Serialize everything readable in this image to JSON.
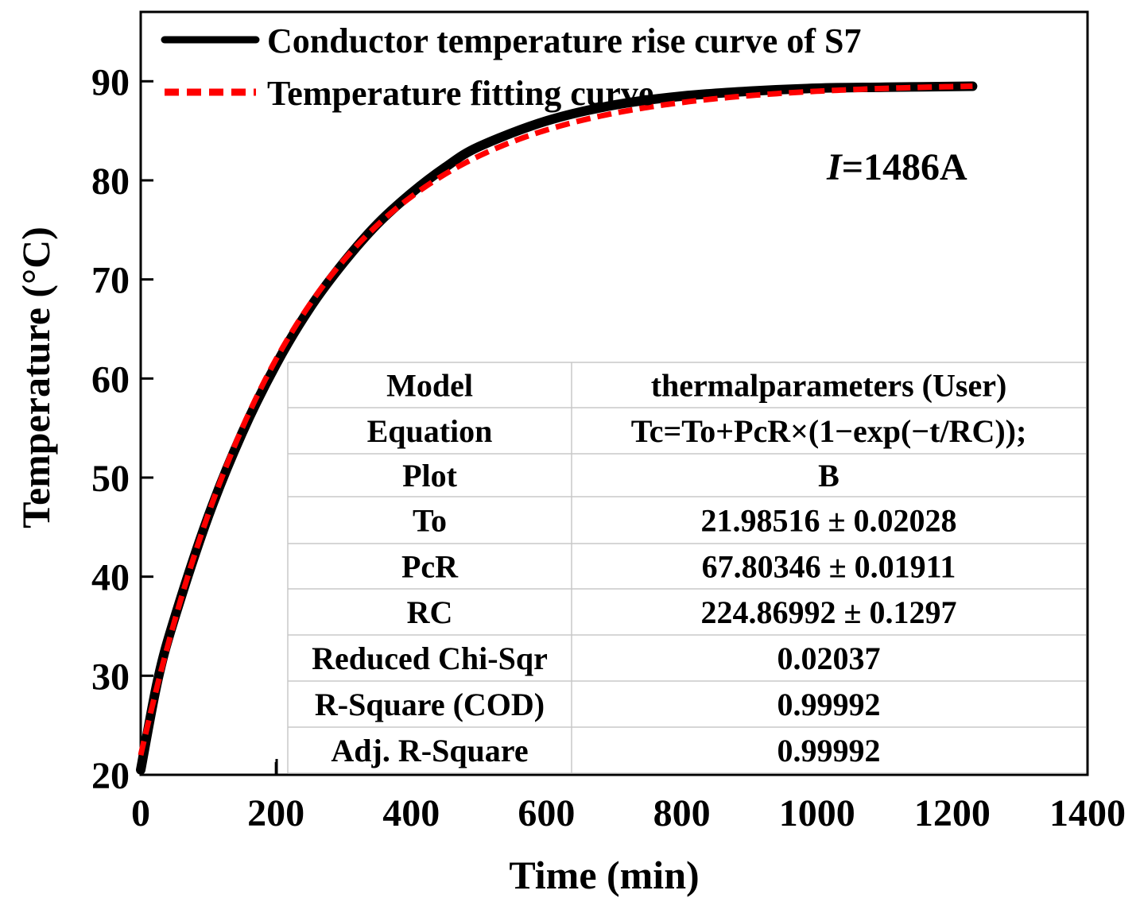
{
  "chart_data": {
    "type": "line",
    "title": "",
    "xlabel": "Time (min)",
    "ylabel": "Temperature (°C)",
    "xlim": [
      0,
      1400
    ],
    "ylim": [
      20,
      97
    ],
    "xticks": [
      0,
      200,
      400,
      600,
      800,
      1000,
      1200,
      1400
    ],
    "yticks": [
      20,
      30,
      40,
      50,
      60,
      70,
      80,
      90
    ],
    "xtick_labels": [
      "0",
      "200",
      "400",
      "600",
      "800",
      "1000",
      "1200",
      "1400"
    ],
    "ytick_labels": [
      "20",
      "30",
      "40",
      "50",
      "60",
      "70",
      "80",
      "90"
    ],
    "annotation": {
      "italic_part": "I",
      "rest": "=1486A"
    },
    "series": [
      {
        "name": "Conductor temperature rise curve of S7",
        "color": "#000000",
        "style": "solid",
        "x": [
          0,
          25,
          50,
          100,
          150,
          200,
          250,
          300,
          350,
          400,
          450,
          500,
          600,
          700,
          800,
          900,
          1000,
          1100,
          1230
        ],
        "y": [
          20.5,
          29.5,
          35.8,
          46.1,
          54.5,
          61.4,
          67.1,
          71.7,
          75.6,
          78.7,
          81.3,
          83.4,
          86.0,
          87.6,
          88.5,
          89.0,
          89.3,
          89.4,
          89.5
        ]
      },
      {
        "name": "Temperature fitting curve",
        "color": "#ff0000",
        "style": "dashed",
        "model": {
          "To": 21.98516,
          "PcR": 67.80346,
          "RC": 224.86992
        },
        "x_range": [
          0,
          1230
        ]
      }
    ],
    "fit_table": {
      "rows": [
        {
          "label": "Model",
          "value": "thermalparameters (User)"
        },
        {
          "label": "Equation",
          "value": "Tc=To+PcR×(1−exp(−t/RC));"
        },
        {
          "label": "Plot",
          "value": "B"
        },
        {
          "label": "To",
          "value": "21.98516 ± 0.02028"
        },
        {
          "label": "PcR",
          "value": "67.80346 ± 0.01911"
        },
        {
          "label": "RC",
          "value": "224.86992 ± 0.1297"
        },
        {
          "label": "Reduced Chi-Sqr",
          "value": "0.02037"
        },
        {
          "label": "R-Square (COD)",
          "value": "0.99992"
        },
        {
          "label": "Adj. R-Square",
          "value": "0.99992"
        }
      ]
    }
  }
}
